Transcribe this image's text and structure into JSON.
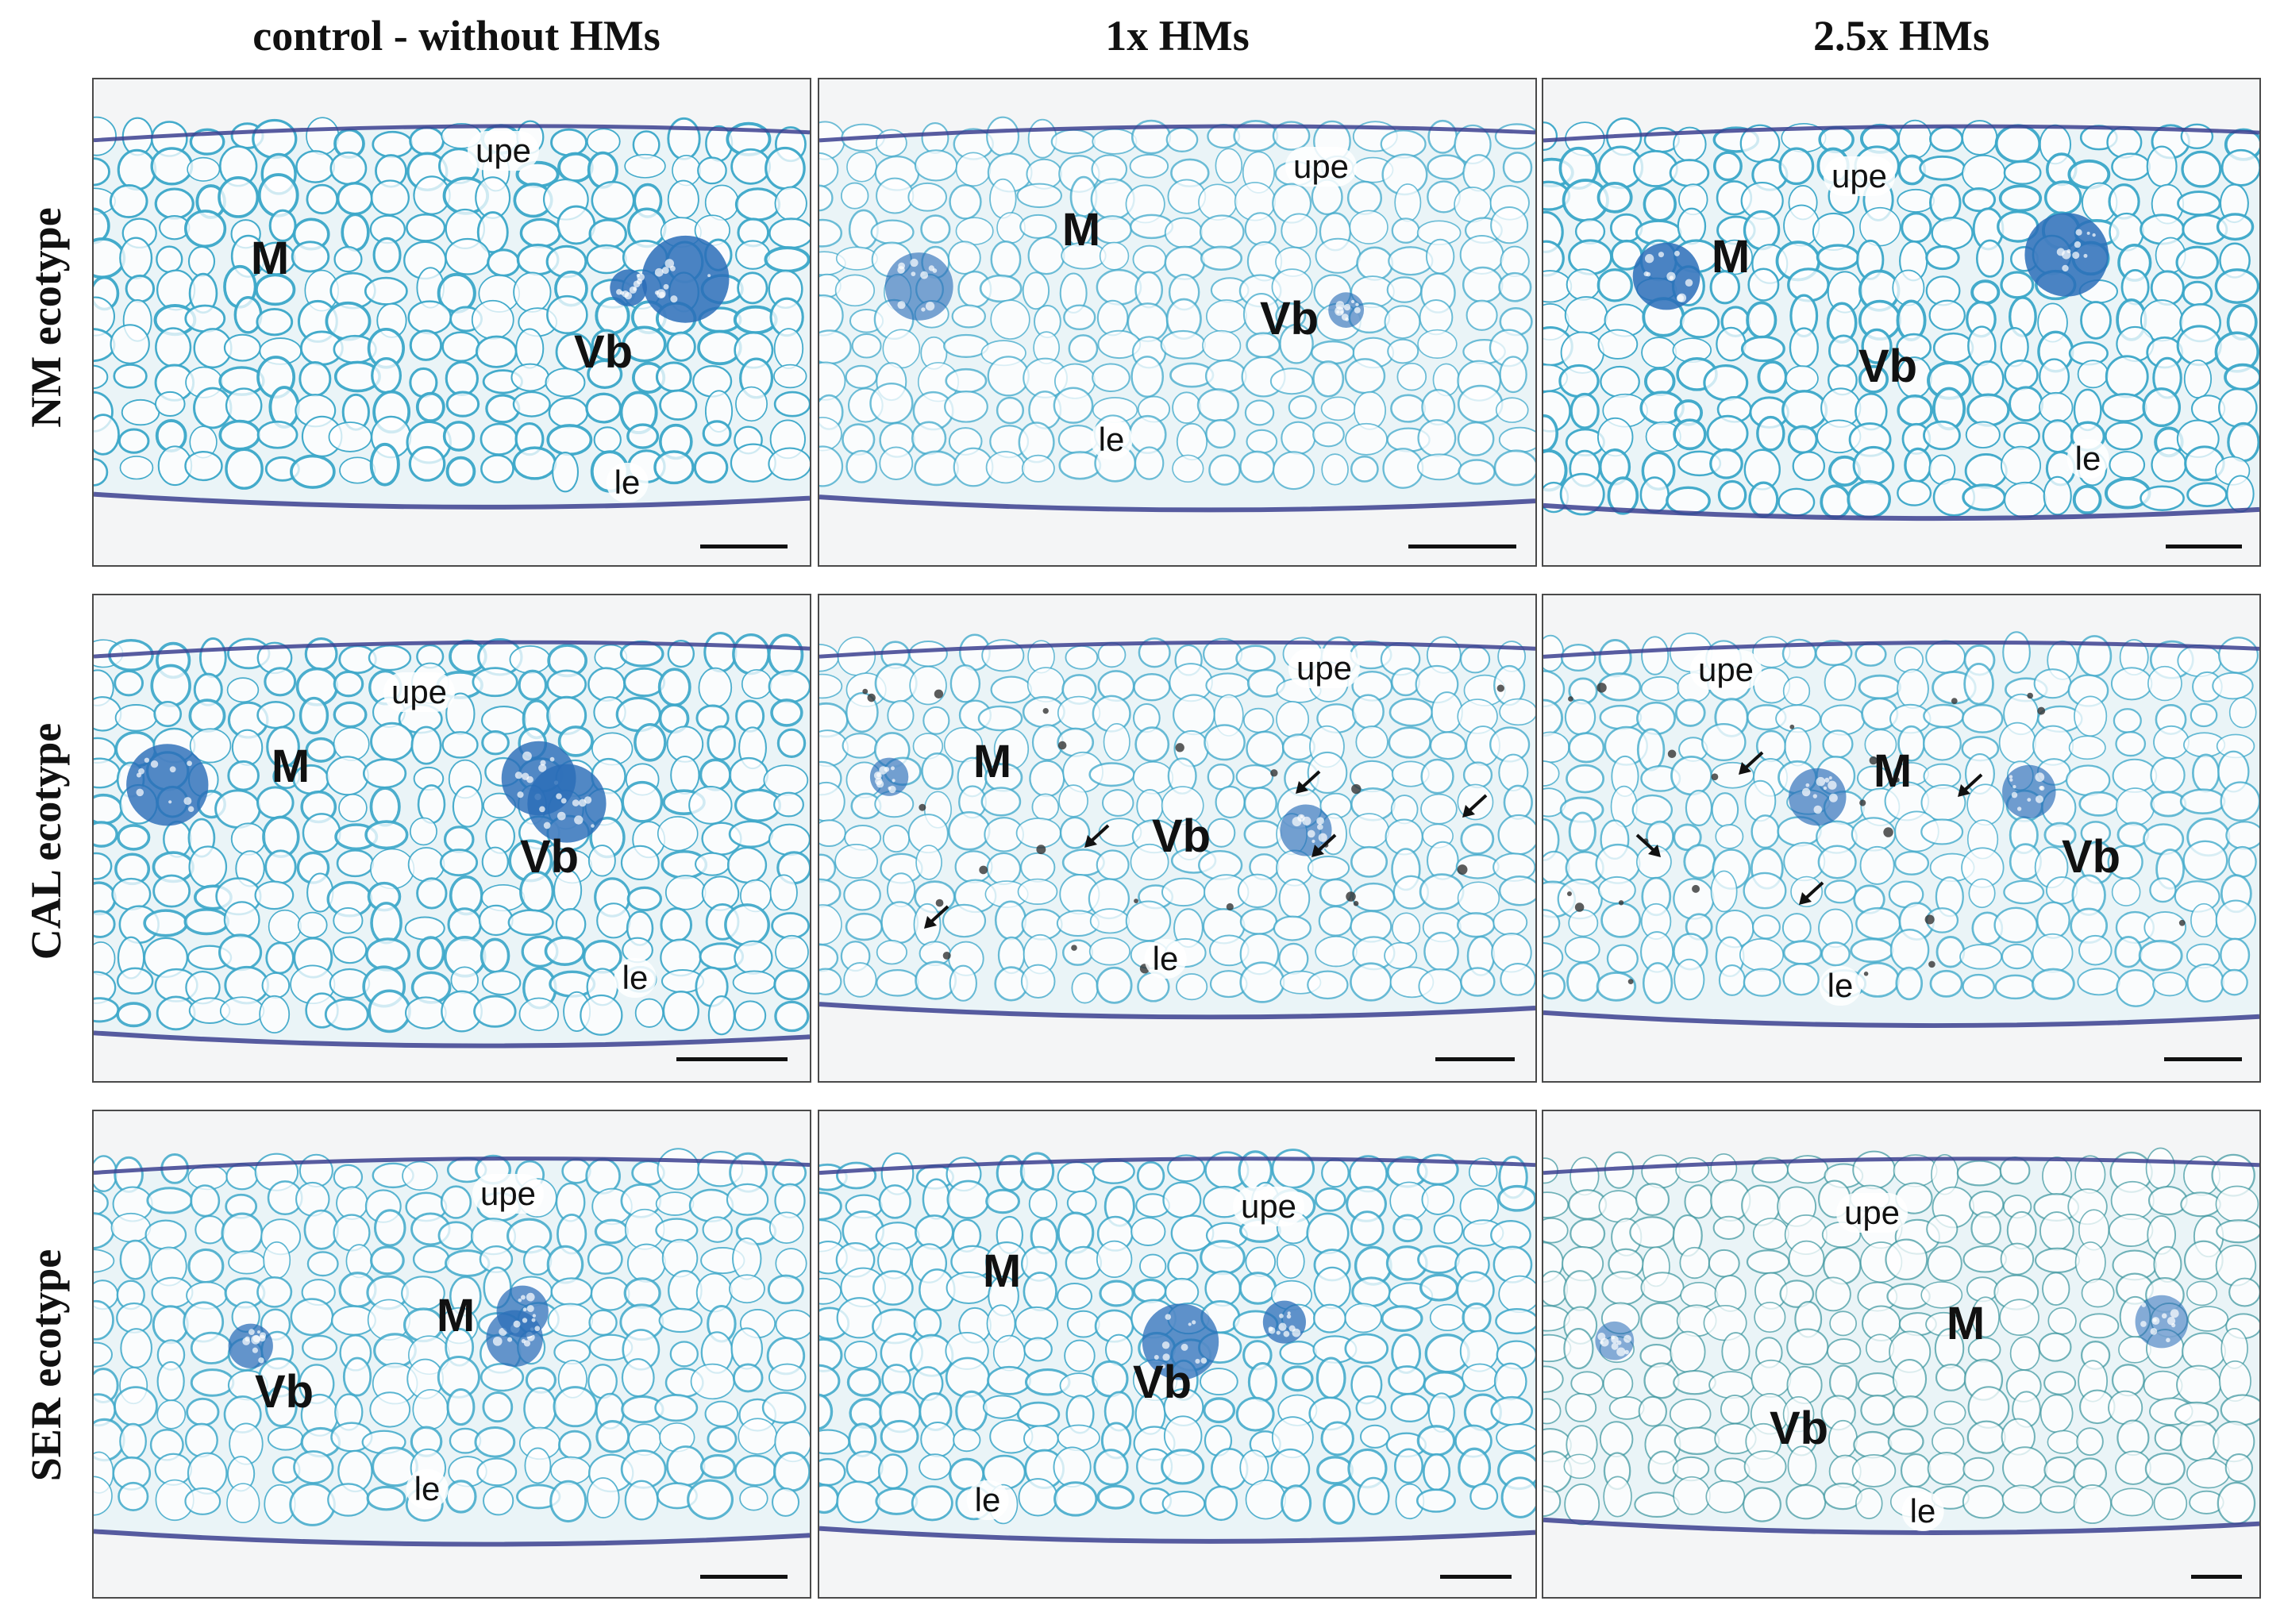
{
  "columns": [
    "control - without HMs",
    "1x HMs",
    "2.5x HMs"
  ],
  "rows": [
    "NM ecotype",
    "CAL ecotype",
    "SER ecotype"
  ],
  "structure_labels": {
    "upper_epidermis": "upe",
    "lower_epidermis": "le",
    "mesophyll": "M",
    "vascular_bundle": "Vb"
  },
  "colors": {
    "stain_dark": "#2a6db8",
    "stain_cyan": "#3aa6c8",
    "stain_teal": "#2f8f98",
    "epidermis_purple": "#3b3f8f",
    "background": "#f4f5f6"
  }
}
